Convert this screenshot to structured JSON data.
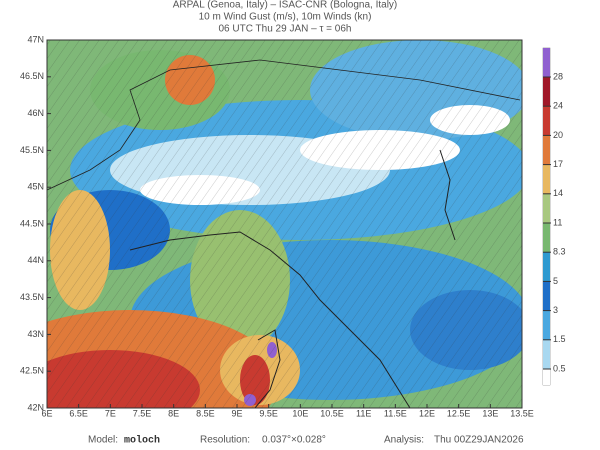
{
  "header": {
    "line1": "ARPAL (Genoa, Italy)  –  ISAC-CNR (Bologna, Italy)",
    "line2": "10 m Wind Gust (m/s), 10m Winds (kn)",
    "line3": "06 UTC Thu 29 JAN  –  τ = 06h"
  },
  "map": {
    "xlim": [
      6,
      13.5
    ],
    "ylim": [
      42,
      47
    ],
    "xticks": [
      {
        "value": 6,
        "label": "6E"
      },
      {
        "value": 6.5,
        "label": "6.5E"
      },
      {
        "value": 7,
        "label": "7E"
      },
      {
        "value": 7.5,
        "label": "7.5E"
      },
      {
        "value": 8,
        "label": "8E"
      },
      {
        "value": 8.5,
        "label": "8.5E"
      },
      {
        "value": 9,
        "label": "9E"
      },
      {
        "value": 9.5,
        "label": "9.5E"
      },
      {
        "value": 10,
        "label": "10E"
      },
      {
        "value": 10.5,
        "label": "10.5E"
      },
      {
        "value": 11,
        "label": "11E"
      },
      {
        "value": 11.5,
        "label": "11.5E"
      },
      {
        "value": 12,
        "label": "12E"
      },
      {
        "value": 12.5,
        "label": "12.5E"
      },
      {
        "value": 13,
        "label": "13E"
      },
      {
        "value": 13.5,
        "label": "13.5E"
      }
    ],
    "yticks": [
      {
        "value": 42,
        "label": "42N"
      },
      {
        "value": 42.5,
        "label": "42.5N"
      },
      {
        "value": 43,
        "label": "43N"
      },
      {
        "value": 43.5,
        "label": "43.5N"
      },
      {
        "value": 44,
        "label": "44N"
      },
      {
        "value": 44.5,
        "label": "44.5N"
      },
      {
        "value": 45,
        "label": "45N"
      },
      {
        "value": 45.5,
        "label": "45.5N"
      },
      {
        "value": 46,
        "label": "46N"
      },
      {
        "value": 46.5,
        "label": "46.5N"
      },
      {
        "value": 47,
        "label": "47N"
      }
    ]
  },
  "colorbar": {
    "ticks": [
      0.5,
      1.5,
      3,
      5,
      8.3,
      11,
      14,
      17,
      20,
      24,
      28
    ],
    "colors": [
      "#ffffff",
      "#a8d8f0",
      "#4aa8e0",
      "#1f6fc8",
      "#2e9ad0",
      "#78b870",
      "#a8c880",
      "#e8b860",
      "#e07a3a",
      "#c83a30",
      "#a01828",
      "#9060d0"
    ]
  },
  "footer": {
    "model_label": "Model:",
    "model": "moloch",
    "resolution_label": "Resolution:",
    "resolution": "0.037°×0.028°",
    "analysis_label": "Analysis:",
    "analysis": "Thu 00Z29JAN2026"
  }
}
